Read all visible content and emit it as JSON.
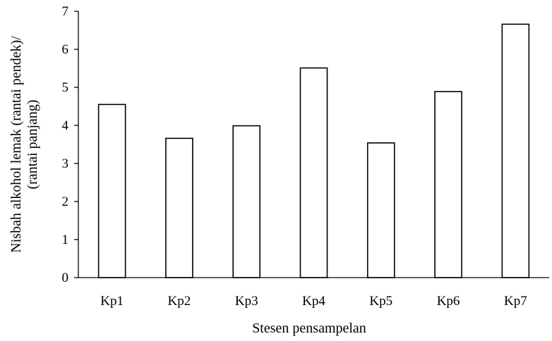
{
  "chart_data": {
    "type": "bar",
    "categories": [
      "Kp1",
      "Kp2",
      "Kp3",
      "Kp4",
      "Kp5",
      "Kp6",
      "Kp7"
    ],
    "values": [
      4.55,
      3.66,
      3.99,
      5.51,
      3.54,
      4.89,
      6.66
    ],
    "xlabel": "Stesen pensampelan",
    "ylabel_line1": "Nisbah alkohol lemak (rantai pendek)/",
    "ylabel_line2": "(rantai panjang)",
    "ylim": [
      0,
      7
    ],
    "yticks": [
      "0",
      "1",
      "2",
      "3",
      "4",
      "5",
      "6",
      "7"
    ],
    "bar_fill": "#ffffff",
    "bar_stroke": "#000000",
    "grid": false,
    "legend": "none"
  }
}
